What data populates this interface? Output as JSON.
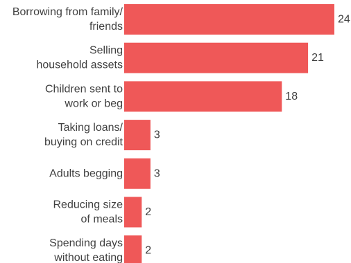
{
  "chart_data": {
    "type": "bar",
    "orientation": "horizontal",
    "categories": [
      [
        "Borrowing from family/",
        "friends"
      ],
      [
        "Selling",
        "household assets"
      ],
      [
        "Children sent to",
        "work or beg"
      ],
      [
        "Taking loans/",
        "buying on credit"
      ],
      [
        "Adults begging"
      ],
      [
        "Reducing size",
        "of meals"
      ],
      [
        "Spending days",
        "without eating"
      ]
    ],
    "values": [
      24,
      21,
      18,
      3,
      3,
      2,
      2
    ],
    "value_labels": [
      "24",
      "21",
      "18",
      "3",
      "3",
      "2",
      "2"
    ],
    "title": "",
    "xlabel": "",
    "ylabel": "",
    "xlim": [
      0,
      24
    ],
    "grid": false,
    "legend": "none",
    "bar_color": "#ef5858",
    "text_color": "#404040"
  }
}
